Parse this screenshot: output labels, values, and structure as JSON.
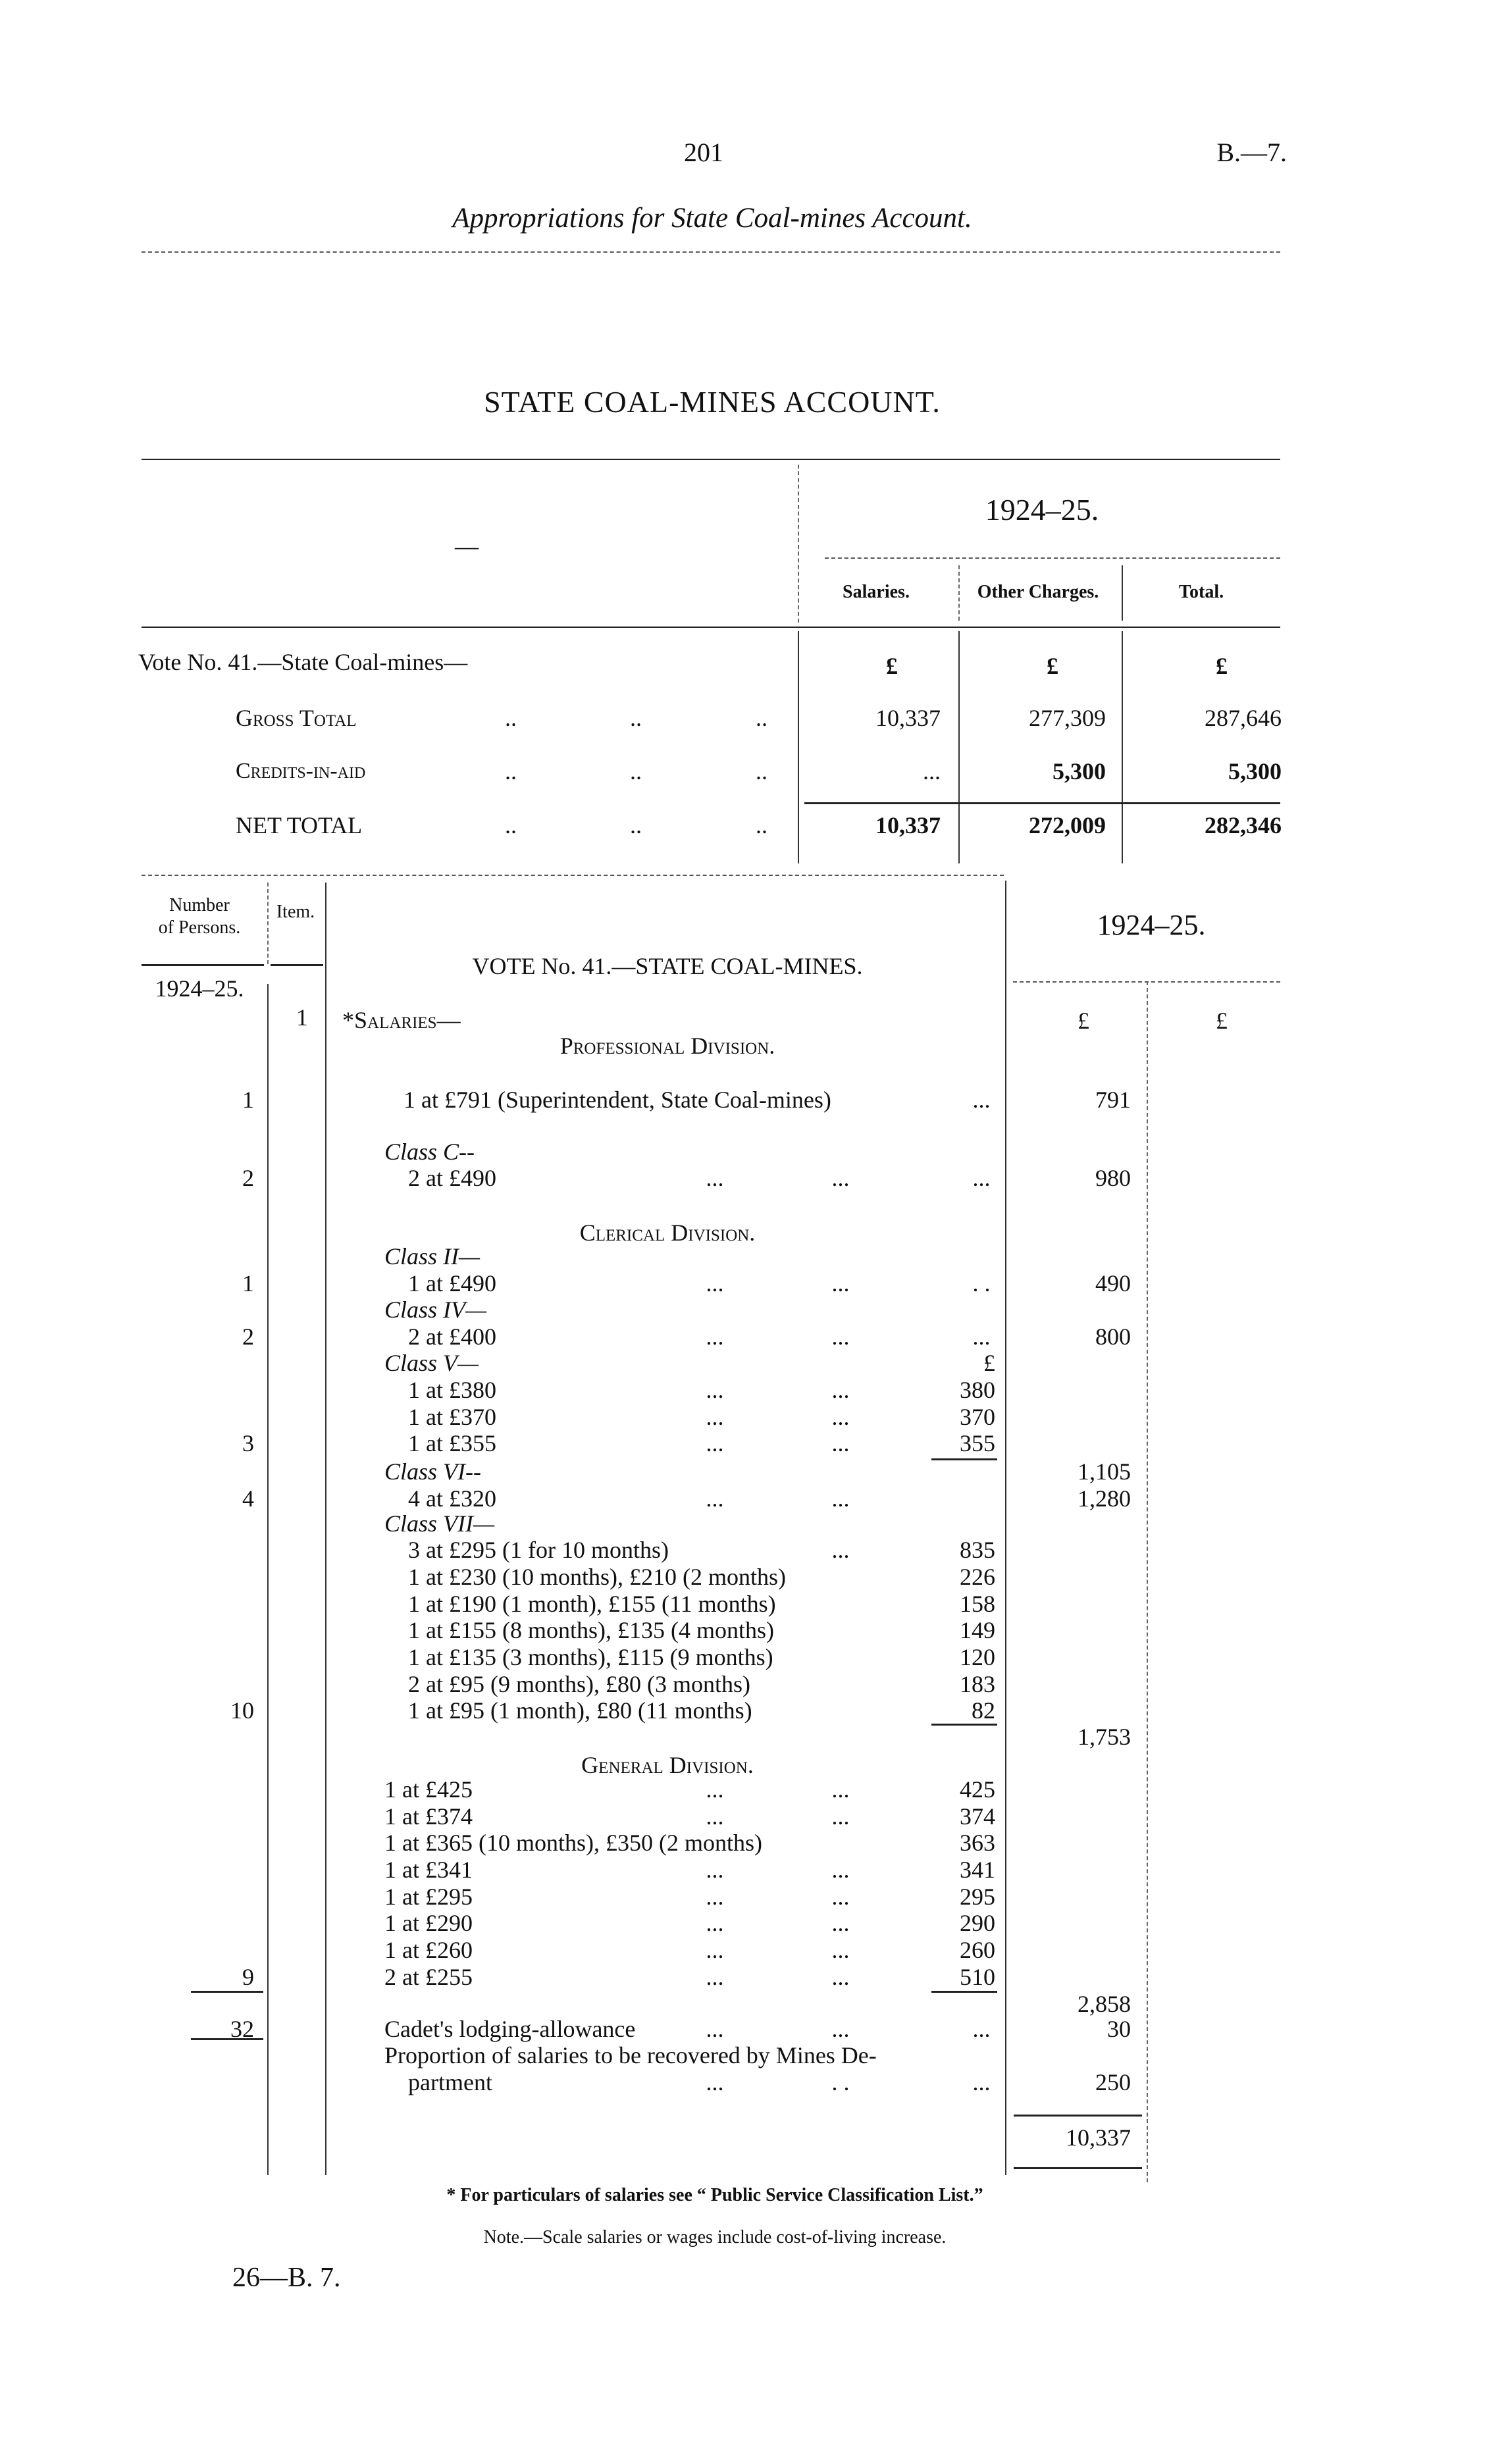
{
  "header": {
    "page_number": "201",
    "report_code": "B.—7.",
    "running_title": "Appropriations for State Coal-mines Account."
  },
  "summary": {
    "title": "STATE COAL-MINES ACCOUNT.",
    "stub_dash": "—",
    "year": "1924–25.",
    "columns": [
      "Salaries.",
      "Other Charges.",
      "Total."
    ],
    "vote_label": "Vote No. 41.—State Coal-mines—",
    "currency": [
      "£",
      "£",
      "£"
    ],
    "rows": [
      {
        "label": "Gross Total",
        "dots": [
          "..",
          "..",
          ".."
        ],
        "values": [
          "10,337",
          "277,309",
          "287,646"
        ]
      },
      {
        "label": "Credits-in-aid",
        "dots": [
          "..",
          "..",
          ".."
        ],
        "values": [
          "...",
          "5,300",
          "5,300"
        ]
      },
      {
        "label": "NET TOTAL",
        "dots": [
          "..",
          "..",
          ".."
        ],
        "values": [
          "10,337",
          "272,009",
          "282,346"
        ]
      }
    ]
  },
  "detail": {
    "col_persons": "Number of Persons.",
    "col_persons_line1": "Number",
    "col_persons_line2": "of Persons.",
    "col_item": "Item.",
    "vote_title": "VOTE No. 41.—STATE COAL-MINES.",
    "year_right": "1924–25.",
    "year_left": "1924–25.",
    "item_number": "1",
    "salaries_heading": "*Salaries—",
    "currency_sub": "£",
    "currency_total": "£",
    "rows": [
      {
        "kind": "division-heading",
        "text": "Professional Division."
      },
      {
        "kind": "first",
        "persons": "1",
        "text": "1 at £791 (Superintendent, State Coal-mines)",
        "dots": [
          null,
          null,
          "..."
        ],
        "amount": "791"
      },
      {
        "kind": "class-label",
        "text": "Class C--"
      },
      {
        "kind": "entry",
        "persons": "2",
        "text": "2 at £490",
        "dots": [
          "...",
          "...",
          "..."
        ],
        "amount": "980"
      },
      {
        "kind": "division-heading",
        "text": "Clerical Division."
      },
      {
        "kind": "class-label",
        "text": "Class II—"
      },
      {
        "kind": "entry",
        "persons": "1",
        "text": "1 at £490",
        "dots": [
          "...",
          "...",
          ". ."
        ],
        "amount": "490"
      },
      {
        "kind": "class-label",
        "text": "Class IV—"
      },
      {
        "kind": "entry",
        "persons": "2",
        "text": "2 at £400",
        "dots": [
          "...",
          "...",
          "..."
        ],
        "amount": "800"
      },
      {
        "kind": "class-label",
        "text": "Class V—",
        "sub": "£"
      },
      {
        "kind": "entry",
        "text": "1 at £380",
        "dots": [
          "...",
          "...",
          null
        ],
        "sub": "380"
      },
      {
        "kind": "entry",
        "text": "1 at £370",
        "dots": [
          "...",
          "...",
          null
        ],
        "sub": "370"
      },
      {
        "kind": "entry",
        "persons": "3",
        "text": "1 at £355",
        "dots": [
          "...",
          "...",
          null
        ],
        "sub": "355"
      },
      {
        "kind": "class-label",
        "text": "Class VI--",
        "sub_rule": true,
        "amount": "1,105"
      },
      {
        "kind": "entry",
        "persons": "4",
        "text": "4 at £320",
        "dots": [
          "...",
          "...",
          null
        ],
        "amount": "1,280"
      },
      {
        "kind": "class-label",
        "text": "Class VII—"
      },
      {
        "kind": "entry",
        "text": "3 at £295 (1 for 10 months)",
        "dots": [
          null,
          "...",
          null
        ],
        "sub": "835"
      },
      {
        "kind": "entry",
        "text": "1 at £230 (10 months), £210 (2 months)",
        "sub": "226"
      },
      {
        "kind": "entry",
        "text": "1 at £190 (1 month), £155 (11 months)",
        "sub": "158"
      },
      {
        "kind": "entry",
        "text": "1 at £155 (8 months), £135 (4 months)",
        "sub": "149"
      },
      {
        "kind": "entry",
        "text": "1 at £135 (3 months), £115 (9 months)",
        "sub": "120"
      },
      {
        "kind": "entry",
        "text": "2 at £95 (9  months), £80 (3 months)",
        "sub": "183"
      },
      {
        "kind": "entry",
        "persons": "10",
        "text": "1 at £95 (1 month), £80 (11 months)",
        "sub": "82"
      },
      {
        "kind": "total",
        "sub_rule": true,
        "amount": "1,753"
      },
      {
        "kind": "division-heading",
        "text": "General Division."
      },
      {
        "kind": "entry-flush",
        "text": "1 at £425",
        "dots": [
          "...",
          "...",
          null
        ],
        "sub": "425"
      },
      {
        "kind": "entry-flush",
        "text": "1 at £374",
        "dots": [
          "...",
          "...",
          null
        ],
        "sub": "374"
      },
      {
        "kind": "entry-flush",
        "text": "1 at £365 (10 months), £350 (2 months)",
        "sub": "363"
      },
      {
        "kind": "entry-flush",
        "text": "1 at £341",
        "dots": [
          "...",
          "...",
          null
        ],
        "sub": "341"
      },
      {
        "kind": "entry-flush",
        "text": "1 at £295",
        "dots": [
          "...",
          "...",
          null
        ],
        "sub": "295"
      },
      {
        "kind": "entry-flush",
        "text": "1 at £290",
        "dots": [
          "...",
          "...",
          null
        ],
        "sub": "290"
      },
      {
        "kind": "entry-flush",
        "text": "1 at £260",
        "dots": [
          "...",
          "...",
          null
        ],
        "sub": "260"
      },
      {
        "kind": "entry-flush",
        "persons": "9",
        "text": "2 at £255",
        "dots": [
          "...",
          "...",
          null
        ],
        "sub": "510"
      },
      {
        "kind": "total",
        "sub_rule": true,
        "persons_rule": true,
        "amount": "2,858"
      },
      {
        "kind": "entry-flush",
        "persons": "32",
        "text": "Cadet's lodging-allowance",
        "dots": [
          "...",
          "...",
          "..."
        ],
        "amount": "30"
      },
      {
        "kind": "entry-flush",
        "text": "Proportion of salaries to be recovered by Mines De-"
      },
      {
        "kind": "entry",
        "text": "partment",
        "dots": [
          "...",
          ". .",
          "..."
        ],
        "amount": "250"
      }
    ],
    "grand_total": "10,337",
    "footnote": "* For particulars of salaries see “ Public Service Classification List.”",
    "note": "Note.—Scale salaries or wages include cost-of-living increase."
  },
  "footer": {
    "signature": "26—B. 7."
  }
}
